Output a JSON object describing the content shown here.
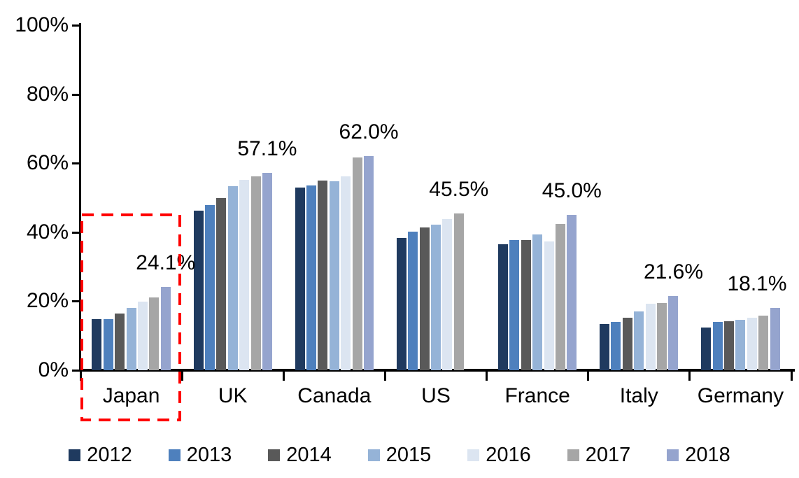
{
  "chart_data": {
    "type": "bar",
    "title": "",
    "value_unit": "%",
    "categories": [
      "Japan",
      "UK",
      "Canada",
      "US",
      "France",
      "Italy",
      "Germany"
    ],
    "series_names": [
      "2012",
      "2013",
      "2014",
      "2015",
      "2016",
      "2017",
      "2018"
    ],
    "series_colors": [
      "#1F3A5F",
      "#4E80BD",
      "#595959",
      "#95B3D7",
      "#DCE5F1",
      "#A6A6A6",
      "#95A4CE"
    ],
    "groups": [
      {
        "label": "Japan",
        "values": [
          14.8,
          14.9,
          16.4,
          18.1,
          19.9,
          21.1,
          24.1
        ],
        "callout": "24.1%"
      },
      {
        "label": "UK",
        "values": [
          46.3,
          47.9,
          49.9,
          53.4,
          55.1,
          56.1,
          57.1
        ],
        "callout": "57.1%"
      },
      {
        "label": "Canada",
        "values": [
          53.0,
          53.6,
          54.9,
          54.7,
          56.1,
          61.6,
          62.0
        ],
        "callout": "62.0%"
      },
      {
        "label": "US",
        "values": [
          38.3,
          40.1,
          41.3,
          42.1,
          43.8,
          45.5,
          null
        ],
        "callout": "45.5%"
      },
      {
        "label": "France",
        "values": [
          36.6,
          37.8,
          37.7,
          39.4,
          37.4,
          42.4,
          45.0
        ],
        "callout": "45.0%"
      },
      {
        "label": "Italy",
        "values": [
          13.3,
          14.0,
          15.2,
          17.0,
          19.2,
          19.4,
          21.6
        ],
        "callout": "21.6%"
      },
      {
        "label": "Germany",
        "values": [
          12.4,
          13.9,
          14.3,
          14.7,
          15.3,
          15.9,
          18.1
        ],
        "callout": "18.1%"
      }
    ],
    "ylim": [
      0,
      100
    ],
    "yticks": [
      "0%",
      "20%",
      "40%",
      "60%",
      "80%",
      "100%"
    ],
    "grid": false,
    "legend_position": "bottom",
    "axis_color": "#000000",
    "highlight": {
      "target": "Japan",
      "shape": "dashed-rectangle",
      "color": "#FF0000"
    }
  }
}
